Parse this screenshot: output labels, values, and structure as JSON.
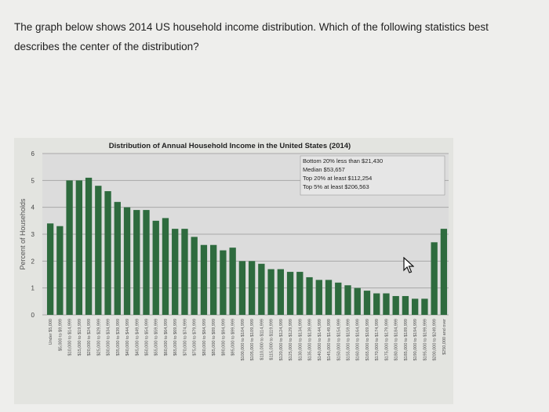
{
  "question": {
    "text": "The graph below shows 2014 US household income distribution. Which of the following statistics best describes the center of the distribution?"
  },
  "chart_data": {
    "type": "bar",
    "title": "Distribution of Annual Household Income in the United States (2014)",
    "ylabel": "Percent of Households",
    "xlabel": "",
    "ylim": [
      0,
      6
    ],
    "yticks": [
      "0",
      "1",
      "2",
      "3",
      "4",
      "5",
      "6"
    ],
    "grid": true,
    "bar_color": "#2e6b3e",
    "annotations": [
      "Bottom 20% less than $21,430",
      "Median $53,657",
      "Top 20% at least $112,254",
      "Top 5% at least $206,563"
    ],
    "categories": [
      "Under $5,000",
      "$5,000 to $9,999",
      "$10,000 to $14,999",
      "$15,000 to $19,999",
      "$20,000 to $24,999",
      "$25,000 to $29,999",
      "$30,000 to $34,999",
      "$35,000 to $39,999",
      "$40,000 to $44,999",
      "$45,000 to $49,999",
      "$50,000 to $54,999",
      "$55,000 to $59,999",
      "$60,000 to $64,999",
      "$65,000 to $69,999",
      "$70,000 to $74,999",
      "$75,000 to $79,999",
      "$80,000 to $84,999",
      "$85,000 to $89,999",
      "$90,000 to $94,999",
      "$95,000 to $99,999",
      "$100,000 to $104,999",
      "$105,000 to $109,999",
      "$110,000 to $114,999",
      "$115,000 to $119,999",
      "$120,000 to $124,999",
      "$125,000 to $129,999",
      "$130,000 to $134,999",
      "$135,000 to $139,999",
      "$140,000 to $144,999",
      "$145,000 to $149,999",
      "$150,000 to $154,999",
      "$155,000 to $159,999",
      "$160,000 to $164,999",
      "$165,000 to $169,999",
      "$170,000 to $174,999",
      "$175,000 to $179,999",
      "$180,000 to $184,999",
      "$185,000 to $189,999",
      "$190,000 to $194,999",
      "$195,000 to $199,999",
      "$200,000 to $249,999",
      "$250,000 and over"
    ],
    "values": [
      3.4,
      3.3,
      5.0,
      5.0,
      5.1,
      4.8,
      4.6,
      4.2,
      4.0,
      3.9,
      3.9,
      3.5,
      3.6,
      3.2,
      3.2,
      2.9,
      2.6,
      2.6,
      2.4,
      2.5,
      2.0,
      2.0,
      1.9,
      1.7,
      1.7,
      1.6,
      1.6,
      1.4,
      1.3,
      1.3,
      1.2,
      1.1,
      1.0,
      0.9,
      0.8,
      0.8,
      0.7,
      0.7,
      0.6,
      0.6,
      2.7,
      3.2
    ]
  }
}
